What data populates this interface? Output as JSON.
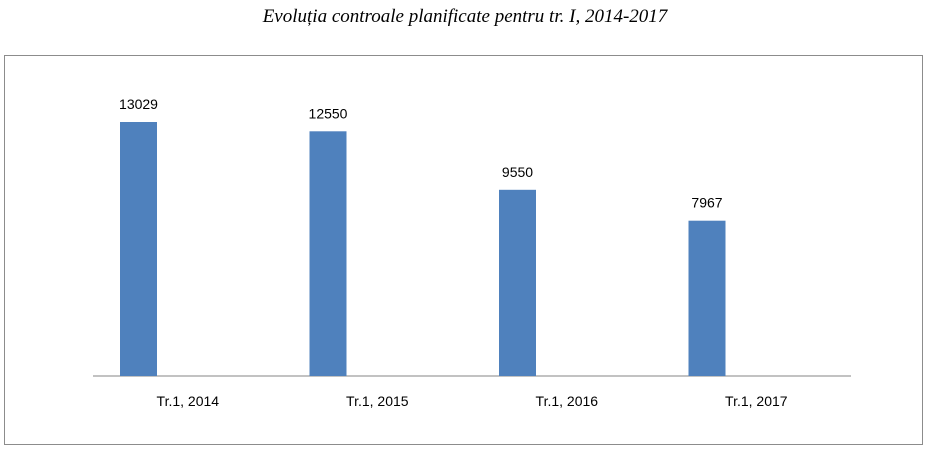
{
  "chart_data": {
    "type": "bar",
    "title": "Evoluția controale planificate pentru tr. I, 2014-2017",
    "categories": [
      "Tr.1, 2014",
      "Tr.1, 2015",
      "Tr.1, 2016",
      "Tr.1, 2017"
    ],
    "series": [
      {
        "values": [
          13029,
          12550,
          9550,
          7967
        ]
      }
    ],
    "data_labels": [
      "13029",
      "12550",
      "9550",
      "7967"
    ],
    "ylim": [
      0,
      14000
    ],
    "grid": false,
    "legend": "none",
    "bar_color": "#4f81bd"
  }
}
